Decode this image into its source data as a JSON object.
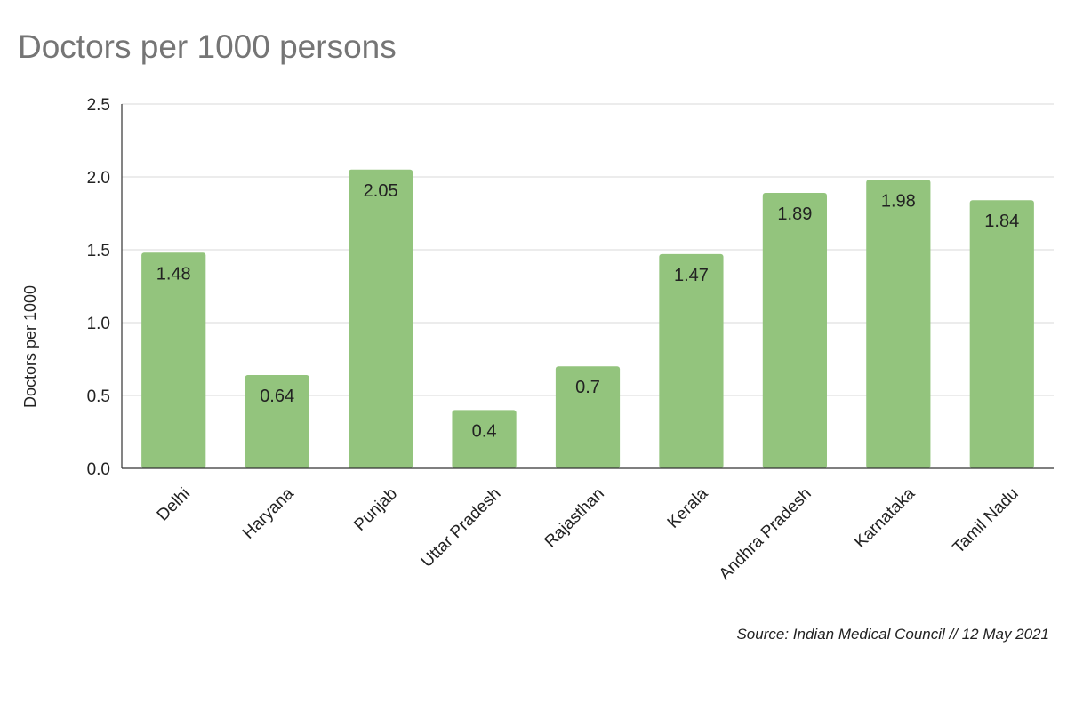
{
  "chart_data": {
    "type": "bar",
    "title": "Doctors per 1000 persons",
    "ylabel": "Doctors per 1000",
    "xlabel": "",
    "categories": [
      "Delhi",
      "Haryana",
      "Punjab",
      "Uttar Pradesh",
      "Rajasthan",
      "Kerala",
      "Andhra Pradesh",
      "Karnataka",
      "Tamil Nadu"
    ],
    "values": [
      1.48,
      0.64,
      2.05,
      0.4,
      0.7,
      1.47,
      1.89,
      1.98,
      1.84
    ],
    "value_labels": [
      "1.48",
      "0.64",
      "2.05",
      "0.4",
      "0.7",
      "1.47",
      "1.89",
      "1.98",
      "1.84"
    ],
    "ylim": [
      0,
      2.5
    ],
    "yticks": [
      "0.0",
      "0.5",
      "1.0",
      "1.5",
      "2.0",
      "2.5"
    ],
    "grid": true,
    "legend": "none",
    "bar_color": "#93c47d",
    "source": "Source: Indian Medical Council // 12 May 2021"
  }
}
